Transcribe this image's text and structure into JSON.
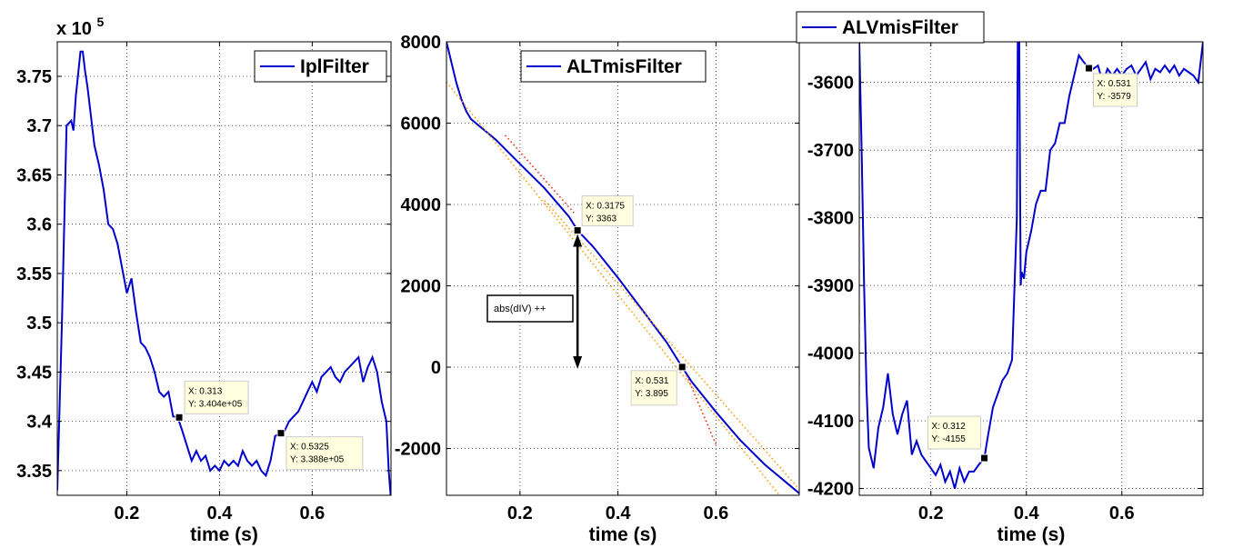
{
  "chart_data": [
    {
      "type": "line",
      "xlabel": "time (s)",
      "ylabel": "",
      "exponent_label": "x 10",
      "exponent_power": "5",
      "xlim": [
        0.05,
        0.77
      ],
      "ylim": [
        3.325,
        3.785
      ],
      "x_ticks": [
        0.2,
        0.4,
        0.6
      ],
      "x_tick_labels": [
        "0.2",
        "0.4",
        "0.6"
      ],
      "y_ticks": [
        3.35,
        3.4,
        3.45,
        3.5,
        3.55,
        3.6,
        3.65,
        3.7,
        3.75
      ],
      "y_tick_labels": [
        "3.35",
        "3.4",
        "3.45",
        "3.5",
        "3.55",
        "3.6",
        "3.65",
        "3.7",
        "3.75"
      ],
      "grid": true,
      "legend": {
        "position": "top-right",
        "entries": [
          "IplFilter"
        ]
      },
      "series": [
        {
          "name": "IplFilter",
          "color": "#0000cc",
          "x": [
            0.05,
            0.06,
            0.07,
            0.08,
            0.085,
            0.09,
            0.1,
            0.105,
            0.11,
            0.115,
            0.12,
            0.13,
            0.14,
            0.15,
            0.16,
            0.17,
            0.18,
            0.19,
            0.2,
            0.21,
            0.22,
            0.23,
            0.24,
            0.25,
            0.26,
            0.27,
            0.28,
            0.29,
            0.3,
            0.31,
            0.32,
            0.33,
            0.34,
            0.35,
            0.36,
            0.37,
            0.38,
            0.39,
            0.4,
            0.41,
            0.42,
            0.43,
            0.44,
            0.45,
            0.46,
            0.47,
            0.48,
            0.49,
            0.5,
            0.51,
            0.52,
            0.53,
            0.54,
            0.55,
            0.56,
            0.57,
            0.58,
            0.59,
            0.6,
            0.61,
            0.62,
            0.63,
            0.64,
            0.65,
            0.66,
            0.67,
            0.68,
            0.69,
            0.7,
            0.71,
            0.72,
            0.73,
            0.74,
            0.75,
            0.76,
            0.765,
            0.77
          ],
          "values": [
            3.33,
            3.5,
            3.7,
            3.705,
            3.695,
            3.73,
            3.775,
            3.775,
            3.755,
            3.74,
            3.72,
            3.68,
            3.66,
            3.635,
            3.6,
            3.595,
            3.58,
            3.555,
            3.53,
            3.545,
            3.51,
            3.48,
            3.475,
            3.465,
            3.45,
            3.43,
            3.425,
            3.43,
            3.405,
            3.404,
            3.39,
            3.375,
            3.36,
            3.37,
            3.36,
            3.365,
            3.35,
            3.355,
            3.35,
            3.36,
            3.355,
            3.36,
            3.355,
            3.37,
            3.36,
            3.355,
            3.36,
            3.35,
            3.345,
            3.36,
            3.385,
            3.388,
            3.39,
            3.4,
            3.405,
            3.41,
            3.42,
            3.43,
            3.44,
            3.43,
            3.445,
            3.45,
            3.455,
            3.445,
            3.44,
            3.45,
            3.455,
            3.46,
            3.465,
            3.44,
            3.455,
            3.465,
            3.45,
            3.42,
            3.4,
            3.35,
            3.32
          ]
        }
      ],
      "datatips": [
        {
          "x": 0.313,
          "y": 3.404,
          "line1": "X: 0.313",
          "line2": "Y: 3.404e+05"
        },
        {
          "x": 0.5325,
          "y": 3.388,
          "line1": "X: 0.5325",
          "line2": "Y: 3.388e+05"
        }
      ]
    },
    {
      "type": "line",
      "xlabel": "time (s)",
      "ylabel": "",
      "xlim": [
        0.05,
        0.77
      ],
      "ylim": [
        -3150,
        8000
      ],
      "x_ticks": [
        0.2,
        0.4,
        0.6
      ],
      "x_tick_labels": [
        "0.2",
        "0.4",
        "0.6"
      ],
      "y_ticks": [
        -2000,
        0,
        2000,
        4000,
        6000,
        8000
      ],
      "y_tick_labels": [
        "-2000",
        "0",
        "2000",
        "4000",
        "6000",
        "8000"
      ],
      "grid": true,
      "legend": {
        "position": "top-right",
        "entries": [
          "ALTmisFilter"
        ]
      },
      "series": [
        {
          "name": "ALTmisFilter",
          "color": "#0000cc",
          "x": [
            0.05,
            0.06,
            0.07,
            0.08,
            0.09,
            0.1,
            0.12,
            0.15,
            0.2,
            0.25,
            0.3,
            0.3175,
            0.35,
            0.4,
            0.45,
            0.5,
            0.531,
            0.55,
            0.6,
            0.65,
            0.7,
            0.75,
            0.77
          ],
          "values": [
            8000,
            7500,
            7000,
            6600,
            6300,
            6100,
            5900,
            5600,
            5000,
            4400,
            3700,
            3363,
            2950,
            2200,
            1400,
            600,
            3.895,
            -350,
            -1100,
            -1800,
            -2400,
            -2900,
            -3100
          ]
        },
        {
          "name": "",
          "style": "dotted",
          "color": "#ff9900",
          "x": [
            0.05,
            0.78
          ],
          "values": [
            7010,
            -3900
          ]
        },
        {
          "name": "",
          "style": "dotted",
          "color": "#ff9900",
          "x": [
            0.25,
            0.77
          ],
          "values": [
            4100,
            -3000
          ]
        },
        {
          "name": "",
          "style": "dotted",
          "color": "#ee2200",
          "x": [
            0.17,
            0.31
          ],
          "values": [
            5700,
            3800
          ]
        },
        {
          "name": "",
          "style": "dotted",
          "color": "#ee2200",
          "x": [
            0.54,
            0.6
          ],
          "values": [
            -200,
            -1900
          ]
        }
      ],
      "datatips": [
        {
          "x": 0.3175,
          "y": 3363,
          "line1": "X: 0.3175",
          "line2": "Y: 3363"
        },
        {
          "x": 0.531,
          "y": 3.895,
          "line1": "X: 0.531",
          "line2": "Y: 3.895"
        }
      ],
      "annotation": {
        "text": "abs(dIV) ++",
        "arrow_x": 0.3175,
        "arrow_y_from": 3363,
        "arrow_y_to": 0
      }
    },
    {
      "type": "line",
      "xlabel": "time (s)",
      "ylabel": "",
      "xlim": [
        0.05,
        0.77
      ],
      "ylim": [
        -4210,
        -3540
      ],
      "x_ticks": [
        0.2,
        0.4,
        0.6
      ],
      "x_tick_labels": [
        "0.2",
        "0.4",
        "0.6"
      ],
      "y_ticks": [
        -4200,
        -4100,
        -4000,
        -3900,
        -3800,
        -3700,
        -3600
      ],
      "y_tick_labels": [
        "-4200",
        "-4100",
        "-4000",
        "-3900",
        "-3800",
        "-3700",
        "-3600"
      ],
      "grid": true,
      "legend": {
        "position": "top-right",
        "entries": [
          "ALVmisFilter"
        ]
      },
      "series": [
        {
          "name": "ALVmisFilter",
          "color": "#0000cc",
          "x": [
            0.05,
            0.055,
            0.06,
            0.065,
            0.07,
            0.08,
            0.09,
            0.1,
            0.11,
            0.12,
            0.13,
            0.14,
            0.15,
            0.16,
            0.17,
            0.18,
            0.19,
            0.2,
            0.21,
            0.22,
            0.23,
            0.24,
            0.25,
            0.26,
            0.27,
            0.28,
            0.29,
            0.3,
            0.312,
            0.32,
            0.33,
            0.34,
            0.35,
            0.36,
            0.37,
            0.38,
            0.382,
            0.385,
            0.388,
            0.39,
            0.395,
            0.4,
            0.41,
            0.42,
            0.43,
            0.44,
            0.45,
            0.46,
            0.47,
            0.48,
            0.49,
            0.5,
            0.51,
            0.52,
            0.531,
            0.54,
            0.55,
            0.56,
            0.57,
            0.58,
            0.59,
            0.6,
            0.61,
            0.62,
            0.63,
            0.64,
            0.65,
            0.66,
            0.67,
            0.68,
            0.69,
            0.7,
            0.71,
            0.72,
            0.73,
            0.74,
            0.75,
            0.76,
            0.77
          ],
          "values": [
            -3540,
            -3700,
            -3900,
            -4050,
            -4140,
            -4170,
            -4110,
            -4080,
            -4030,
            -4090,
            -4120,
            -4090,
            -4070,
            -4150,
            -4130,
            -4150,
            -4160,
            -4170,
            -4180,
            -4165,
            -4190,
            -4175,
            -4200,
            -4170,
            -4190,
            -4175,
            -4175,
            -4165,
            -4155,
            -4120,
            -4080,
            -4060,
            -4040,
            -4030,
            -4010,
            -3800,
            -3540,
            -3540,
            -3900,
            -3880,
            -3890,
            -3850,
            -3820,
            -3780,
            -3760,
            -3760,
            -3700,
            -3690,
            -3660,
            -3660,
            -3620,
            -3590,
            -3560,
            -3570,
            -3579,
            -3580,
            -3575,
            -3600,
            -3580,
            -3590,
            -3580,
            -3590,
            -3580,
            -3575,
            -3590,
            -3580,
            -3570,
            -3595,
            -3580,
            -3585,
            -3575,
            -3585,
            -3575,
            -3590,
            -3580,
            -3585,
            -3590,
            -3600,
            -3540
          ]
        }
      ],
      "datatips": [
        {
          "x": 0.312,
          "y": -4155,
          "line1": "X: 0.312",
          "line2": "Y: -4155"
        },
        {
          "x": 0.531,
          "y": -3579,
          "line1": "X: 0.531",
          "line2": "Y: -3579"
        }
      ]
    }
  ]
}
